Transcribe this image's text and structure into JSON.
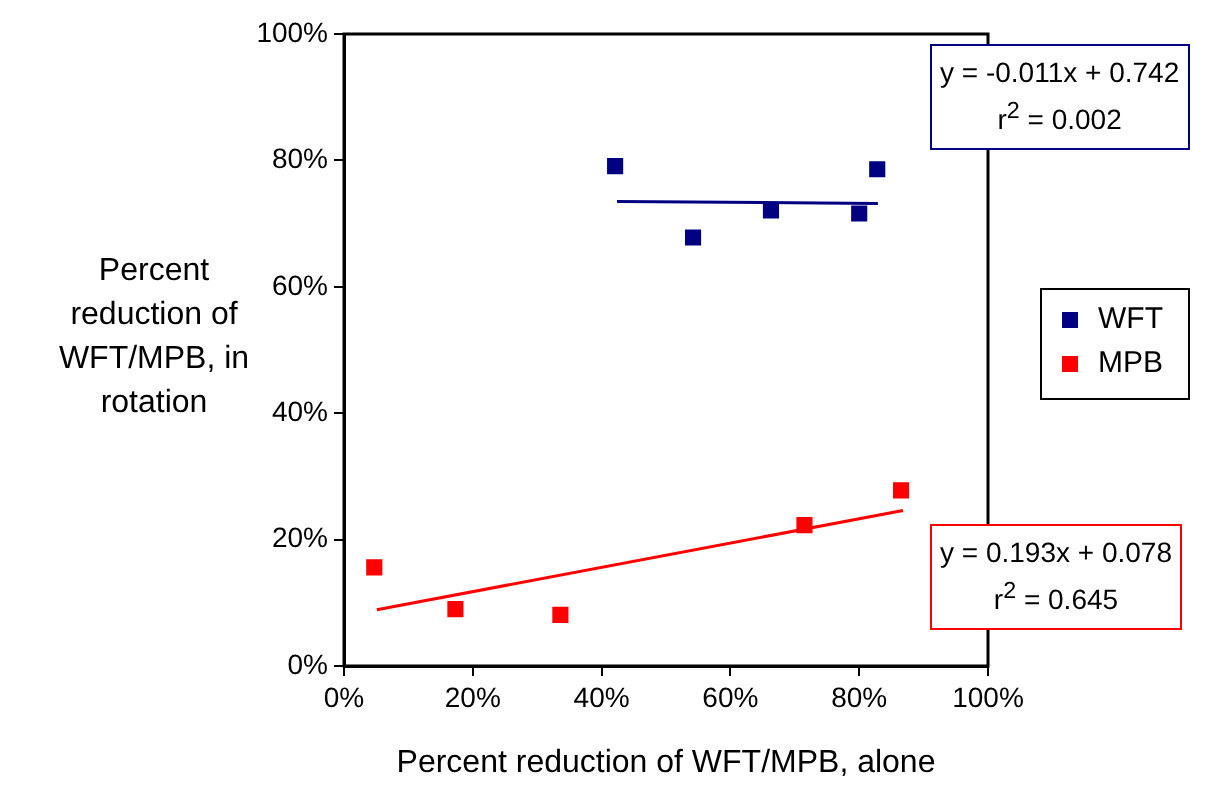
{
  "chart_data": {
    "type": "scatter",
    "xlabel": "Percent reduction of WFT/MPB, alone",
    "ylabel": "Percent reduction of WFT/MPB, in rotation",
    "xlim": [
      0,
      100
    ],
    "xticks": [
      {
        "value": 0,
        "label": "0%"
      },
      {
        "value": 20,
        "label": "20%"
      },
      {
        "value": 40,
        "label": "40%"
      },
      {
        "value": 60,
        "label": "60%"
      },
      {
        "value": 80,
        "label": "80%"
      },
      {
        "value": 100,
        "label": "100%"
      }
    ],
    "ylim": [
      0,
      100
    ],
    "yticks": [
      {
        "value": 0,
        "label": "0%"
      },
      {
        "value": 20,
        "label": "20%"
      },
      {
        "value": 40,
        "label": "40%"
      },
      {
        "value": 60,
        "label": "60%"
      },
      {
        "value": 80,
        "label": "80%"
      },
      {
        "value": 100,
        "label": "100%"
      }
    ],
    "grid": false,
    "legend": "right",
    "marker": "square",
    "series": [
      {
        "name": "WFT",
        "color": "#000080",
        "x": [
          42.1,
          54.2,
          66.3,
          80.0,
          82.8
        ],
        "values": [
          79.1,
          67.8,
          72.1,
          71.6,
          78.6
        ]
      },
      {
        "name": "MPB",
        "color": "#ff0000",
        "x": [
          4.7,
          17.3,
          33.6,
          71.5,
          86.5
        ],
        "values": [
          15.6,
          9.0,
          8.1,
          22.3,
          27.8
        ]
      },
      {
        "type": "line",
        "marker": "none",
        "color": "#000080",
        "x": [
          42.4,
          82.9
        ],
        "values": [
          73.5,
          73.2
        ]
      },
      {
        "type": "line",
        "marker": "none",
        "color": "#ff0000",
        "x": [
          5.1,
          86.8
        ],
        "values": [
          8.9,
          24.6
        ]
      }
    ],
    "annotations": [
      "y = -0.011x + 0.742\nr$^{2}$ = 0.002",
      "y = 0.193x + 0.078\nr$^{2}$ = 0.645"
    ]
  }
}
